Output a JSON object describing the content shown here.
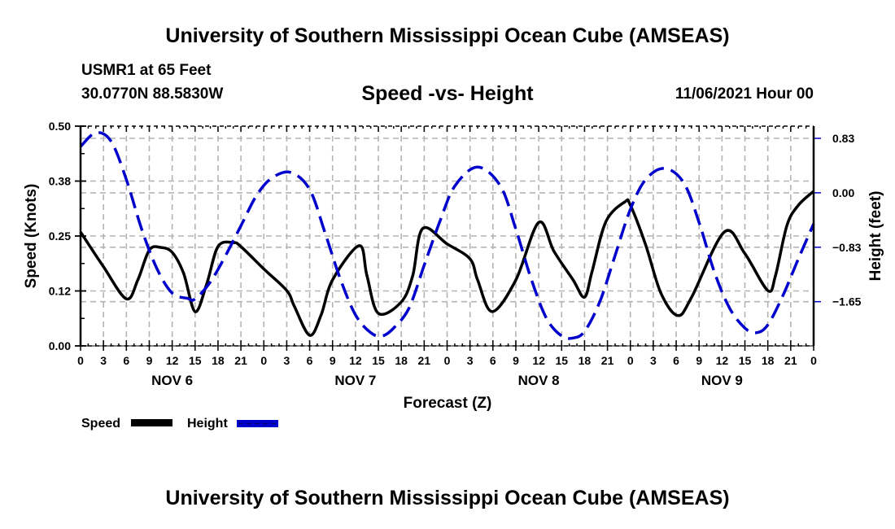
{
  "header": {
    "main_title": "University of Southern Mississippi Ocean Cube (AMSEAS)",
    "station": "USMR1 at 65 Feet",
    "coords": "30.0770N  88.5830W",
    "subtitle": "Speed -vs- Height",
    "datetime": "11/06/2021 Hour 00"
  },
  "footer": {
    "title": "University of Southern Mississippi Ocean Cube (AMSEAS)"
  },
  "chart_data": {
    "type": "line",
    "title": "Speed -vs- Height",
    "xlabel": "Forecast (Z)",
    "ylabel": "Speed (Knots)",
    "y2label": "Height (feet)",
    "xlim": [
      0,
      96
    ],
    "ylim": [
      0,
      0.5
    ],
    "y2lim": [
      -2.32,
      1.01
    ],
    "grid": true,
    "legend_position": "bottom-left",
    "x_tick_labels": [
      "0",
      "3",
      "6",
      "9",
      "12",
      "15",
      "18",
      "21",
      "0",
      "3",
      "6",
      "9",
      "12",
      "15",
      "18",
      "21",
      "0",
      "3",
      "6",
      "9",
      "12",
      "15",
      "18",
      "21",
      "0",
      "3",
      "6",
      "9",
      "12",
      "15",
      "18",
      "21",
      "0"
    ],
    "day_labels": [
      {
        "label": "NOV 6",
        "hour": 12
      },
      {
        "label": "NOV 7",
        "hour": 36
      },
      {
        "label": "NOV 8",
        "hour": 60
      },
      {
        "label": "NOV 9",
        "hour": 84
      }
    ],
    "y_ticks": [
      {
        "value": 0.0,
        "label": "0.00"
      },
      {
        "value": 0.125,
        "label": "0.12"
      },
      {
        "value": 0.25,
        "label": "0.25"
      },
      {
        "value": 0.375,
        "label": "0.38"
      },
      {
        "value": 0.5,
        "label": "0.50"
      }
    ],
    "y2_ticks": [
      {
        "value": 0.825,
        "label": "0.83"
      },
      {
        "value": 0.0,
        "label": "0.00"
      },
      {
        "value": -0.825,
        "label": "−0.83"
      },
      {
        "value": -1.65,
        "label": "−1.65"
      }
    ],
    "series": [
      {
        "name": "Speed",
        "axis": "left",
        "color": "#000000",
        "style": "solid",
        "x": [
          0,
          3,
          6,
          7.5,
          9,
          10.5,
          12,
          13.5,
          15,
          16.5,
          18,
          20,
          21,
          24,
          27,
          28,
          30,
          31.5,
          33,
          36.5,
          37.5,
          39,
          42,
          43.5,
          44.8,
          48,
          51,
          52,
          53.9,
          57,
          60,
          62,
          64.5,
          66,
          67,
          68.8,
          71.3,
          72,
          74,
          76,
          78.2,
          80,
          84.3,
          87,
          90,
          91,
          92.5,
          94,
          96
        ],
        "values": [
          0.259,
          0.18,
          0.107,
          0.15,
          0.218,
          0.224,
          0.213,
          0.165,
          0.078,
          0.14,
          0.226,
          0.235,
          0.226,
          0.175,
          0.126,
          0.09,
          0.024,
          0.07,
          0.15,
          0.228,
          0.16,
          0.074,
          0.1,
          0.16,
          0.267,
          0.232,
          0.198,
          0.15,
          0.078,
          0.15,
          0.281,
          0.215,
          0.15,
          0.111,
          0.17,
          0.283,
          0.328,
          0.32,
          0.23,
          0.12,
          0.069,
          0.11,
          0.259,
          0.21,
          0.126,
          0.16,
          0.274,
          0.32,
          0.352
        ]
      },
      {
        "name": "Height",
        "axis": "right",
        "color": "#0000cc",
        "style": "dashed",
        "x": [
          0,
          2,
          4,
          6,
          8,
          10,
          12,
          14,
          15,
          17,
          19,
          21,
          23,
          25,
          27.5,
          30,
          32,
          34,
          36,
          38,
          39.5,
          41,
          43,
          45,
          47,
          49,
          52,
          55,
          57,
          59,
          61,
          63,
          64.5,
          66,
          68,
          70,
          72,
          74,
          76.5,
          79,
          81,
          83,
          85,
          87,
          88.5,
          90,
          92,
          94,
          96
        ],
        "values": [
          0.7,
          0.91,
          0.78,
          0.2,
          -0.55,
          -1.15,
          -1.52,
          -1.6,
          -1.61,
          -1.35,
          -0.95,
          -0.5,
          -0.05,
          0.22,
          0.31,
          0.05,
          -0.6,
          -1.3,
          -1.85,
          -2.12,
          -2.17,
          -2.05,
          -1.75,
          -1.1,
          -0.45,
          0.1,
          0.39,
          0.1,
          -0.55,
          -1.3,
          -1.9,
          -2.17,
          -2.2,
          -2.1,
          -1.65,
          -0.95,
          -0.25,
          0.2,
          0.37,
          0.15,
          -0.45,
          -1.2,
          -1.75,
          -2.05,
          -2.12,
          -2.0,
          -1.55,
          -1.0,
          -0.47
        ]
      }
    ],
    "legend": [
      {
        "label": "Speed",
        "color": "#000000",
        "style": "solid"
      },
      {
        "label": "Height",
        "color": "#0000cc",
        "style": "dashed"
      }
    ]
  }
}
